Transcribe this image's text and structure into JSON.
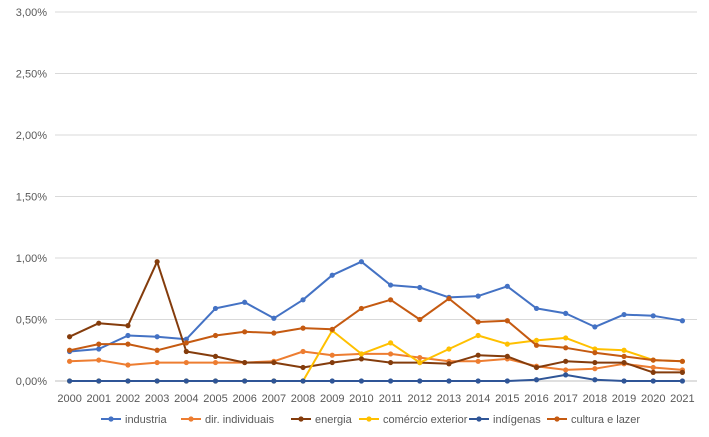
{
  "chart_data": {
    "type": "line",
    "title": "",
    "xlabel": "",
    "ylabel": "",
    "ylim": [
      0,
      3.0
    ],
    "y_tick_values": [
      0,
      0.5,
      1.0,
      1.5,
      2.0,
      2.5,
      3.0
    ],
    "y_tick_labels": [
      "0,00%",
      "0,50%",
      "1,00%",
      "1,50%",
      "2,00%",
      "2,50%",
      "3,00%"
    ],
    "grid": true,
    "legend_position": "bottom",
    "categories": [
      "2000",
      "2001",
      "2002",
      "2003",
      "2004",
      "2005",
      "2006",
      "2007",
      "2008",
      "2009",
      "2010",
      "2011",
      "2012",
      "2013",
      "2014",
      "2015",
      "2016",
      "2017",
      "2018",
      "2019",
      "2020",
      "2021"
    ],
    "series": [
      {
        "name": "industria",
        "color": "#4472c4",
        "values": [
          0.24,
          0.26,
          0.37,
          0.36,
          0.34,
          0.59,
          0.64,
          0.51,
          0.66,
          0.86,
          0.97,
          0.78,
          0.76,
          0.68,
          0.69,
          0.77,
          0.59,
          0.55,
          0.44,
          0.54,
          0.53,
          0.49
        ]
      },
      {
        "name": "dir. individuais",
        "color": "#ed7d31",
        "values": [
          0.16,
          0.17,
          0.13,
          0.15,
          0.15,
          0.15,
          0.15,
          0.16,
          0.24,
          0.21,
          0.22,
          0.22,
          0.19,
          0.16,
          0.16,
          0.18,
          0.12,
          0.09,
          0.1,
          0.14,
          0.11,
          0.09
        ]
      },
      {
        "name": "energia",
        "color": "#843c0c",
        "values": [
          0.36,
          0.47,
          0.45,
          0.97,
          0.24,
          0.2,
          0.15,
          0.15,
          0.11,
          0.15,
          0.18,
          0.15,
          0.15,
          0.14,
          0.21,
          0.2,
          0.11,
          0.16,
          0.15,
          0.15,
          0.07,
          0.07
        ]
      },
      {
        "name": "comércio exterior",
        "color": "#ffc000",
        "values": [
          0.0,
          0.0,
          0.0,
          0.0,
          0.0,
          0.0,
          0.0,
          0.0,
          0.0,
          0.41,
          0.22,
          0.31,
          0.15,
          0.26,
          0.37,
          0.3,
          0.33,
          0.35,
          0.26,
          0.25,
          0.17,
          0.16
        ]
      },
      {
        "name": "indígenas",
        "color": "#2f5597",
        "values": [
          0.0,
          0.0,
          0.0,
          0.0,
          0.0,
          0.0,
          0.0,
          0.0,
          0.0,
          0.0,
          0.0,
          0.0,
          0.0,
          0.0,
          0.0,
          0.0,
          0.01,
          0.05,
          0.01,
          0.0,
          0.0,
          0.0
        ]
      },
      {
        "name": "cultura e lazer",
        "color": "#c55a11",
        "values": [
          0.25,
          0.3,
          0.3,
          0.25,
          0.31,
          0.37,
          0.4,
          0.39,
          0.43,
          0.42,
          0.59,
          0.66,
          0.5,
          0.67,
          0.48,
          0.49,
          0.29,
          0.27,
          0.23,
          0.2,
          0.17,
          0.16
        ]
      }
    ]
  }
}
